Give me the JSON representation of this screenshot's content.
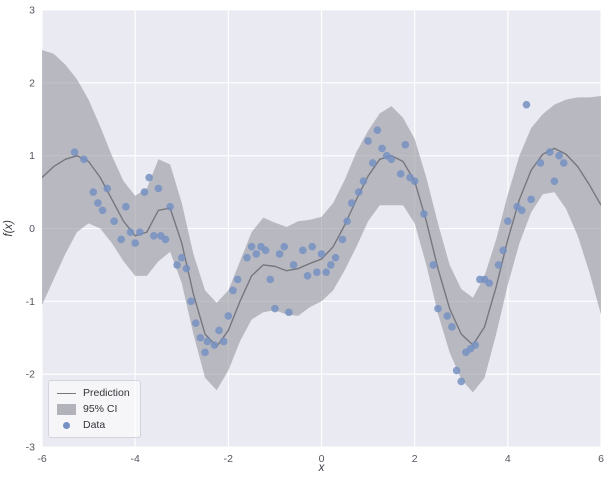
{
  "colors": {
    "axes_bg": "#eaeaf2",
    "grid": "#ffffff",
    "line": "#77777e",
    "band": "#9a9aa2",
    "dots": "#7590c2",
    "tick_text": "#555560"
  },
  "chart_data": {
    "type": "line",
    "title": "",
    "xlabel": "x",
    "ylabel": "f(x)",
    "xlim": [
      -6,
      6
    ],
    "ylim": [
      -3,
      3
    ],
    "xticks": [
      -6,
      -4,
      -2,
      0,
      2,
      4,
      6
    ],
    "yticks": [
      -3,
      -2,
      -1,
      0,
      1,
      2,
      3
    ],
    "grid": true,
    "legend_position": "lower left",
    "series": [
      {
        "name": "Prediction",
        "type": "line",
        "x": [
          -6.0,
          -5.75,
          -5.5,
          -5.25,
          -5.0,
          -4.75,
          -4.5,
          -4.25,
          -4.0,
          -3.75,
          -3.5,
          -3.25,
          -3.0,
          -2.75,
          -2.5,
          -2.25,
          -2.0,
          -1.75,
          -1.5,
          -1.25,
          -1.0,
          -0.75,
          -0.5,
          -0.25,
          0.0,
          0.25,
          0.5,
          0.75,
          1.0,
          1.25,
          1.5,
          1.75,
          2.0,
          2.25,
          2.5,
          2.75,
          3.0,
          3.25,
          3.5,
          3.75,
          4.0,
          4.25,
          4.5,
          4.75,
          5.0,
          5.25,
          5.5,
          5.75,
          6.0
        ],
        "y": [
          0.7,
          0.85,
          0.95,
          1.0,
          0.92,
          0.7,
          0.4,
          0.1,
          -0.1,
          -0.05,
          0.25,
          0.28,
          -0.2,
          -0.9,
          -1.45,
          -1.62,
          -1.4,
          -1.0,
          -0.65,
          -0.5,
          -0.52,
          -0.58,
          -0.55,
          -0.48,
          -0.42,
          -0.25,
          0.05,
          0.4,
          0.72,
          0.95,
          1.0,
          0.92,
          0.65,
          0.1,
          -0.55,
          -1.1,
          -1.45,
          -1.6,
          -1.35,
          -0.8,
          -0.15,
          0.4,
          0.8,
          1.02,
          1.1,
          1.02,
          0.85,
          0.6,
          0.32
        ]
      },
      {
        "name": "95% CI",
        "type": "band",
        "x": [
          -6.0,
          -5.75,
          -5.5,
          -5.25,
          -5.0,
          -4.75,
          -4.5,
          -4.25,
          -4.0,
          -3.75,
          -3.5,
          -3.25,
          -3.0,
          -2.75,
          -2.5,
          -2.25,
          -2.0,
          -1.75,
          -1.5,
          -1.25,
          -1.0,
          -0.75,
          -0.5,
          -0.25,
          0.0,
          0.25,
          0.5,
          0.75,
          1.0,
          1.25,
          1.5,
          1.75,
          2.0,
          2.25,
          2.5,
          2.75,
          3.0,
          3.25,
          3.5,
          3.75,
          4.0,
          4.25,
          4.5,
          4.75,
          5.0,
          5.25,
          5.5,
          5.75,
          6.0
        ],
        "upper": [
          2.45,
          2.4,
          2.25,
          2.05,
          1.77,
          1.4,
          1.0,
          0.65,
          0.45,
          0.55,
          0.95,
          0.88,
          0.35,
          -0.35,
          -0.85,
          -1.02,
          -0.85,
          -0.45,
          -0.05,
          0.15,
          0.08,
          0.02,
          0.1,
          0.12,
          0.16,
          0.35,
          0.67,
          1.05,
          1.34,
          1.58,
          1.68,
          1.52,
          1.23,
          0.7,
          0.07,
          -0.5,
          -0.83,
          -0.95,
          -0.65,
          -0.15,
          0.47,
          1.0,
          1.38,
          1.57,
          1.7,
          1.77,
          1.8,
          1.8,
          1.82
        ],
        "lower": [
          -1.05,
          -0.7,
          -0.35,
          -0.05,
          0.07,
          0.0,
          -0.2,
          -0.45,
          -0.65,
          -0.65,
          -0.45,
          -0.32,
          -0.75,
          -1.45,
          -2.05,
          -2.22,
          -1.95,
          -1.55,
          -1.25,
          -1.15,
          -1.12,
          -1.18,
          -1.2,
          -1.08,
          -1.0,
          -0.85,
          -0.57,
          -0.25,
          0.1,
          0.32,
          0.32,
          0.32,
          0.07,
          -0.5,
          -1.17,
          -1.7,
          -2.07,
          -2.25,
          -2.05,
          -1.45,
          -0.77,
          -0.2,
          0.22,
          0.47,
          0.5,
          0.27,
          -0.1,
          -0.6,
          -1.18
        ]
      },
      {
        "name": "Data",
        "type": "scatter",
        "x": [
          -5.3,
          -5.1,
          -4.9,
          -4.8,
          -4.7,
          -4.6,
          -4.45,
          -4.3,
          -4.2,
          -4.1,
          -4.0,
          -3.9,
          -3.8,
          -3.7,
          -3.6,
          -3.5,
          -3.45,
          -3.35,
          -3.25,
          -3.1,
          -3.0,
          -2.9,
          -2.8,
          -2.7,
          -2.6,
          -2.5,
          -2.45,
          -2.3,
          -2.2,
          -2.1,
          -2.0,
          -1.9,
          -1.8,
          -1.6,
          -1.5,
          -1.4,
          -1.3,
          -1.2,
          -1.1,
          -1.0,
          -0.9,
          -0.8,
          -0.7,
          -0.6,
          -0.4,
          -0.3,
          -0.2,
          -0.1,
          0.0,
          0.1,
          0.2,
          0.3,
          0.45,
          0.55,
          0.65,
          0.8,
          0.9,
          1.0,
          1.1,
          1.2,
          1.3,
          1.4,
          1.5,
          1.7,
          1.8,
          1.9,
          2.0,
          2.2,
          2.4,
          2.5,
          2.7,
          2.8,
          2.9,
          3.0,
          3.1,
          3.2,
          3.3,
          3.4,
          3.5,
          3.6,
          3.8,
          3.9,
          4.0,
          4.2,
          4.3,
          4.4,
          4.5,
          4.7,
          4.9,
          5.0,
          5.1,
          5.2
        ],
        "y": [
          1.05,
          0.95,
          0.5,
          0.35,
          0.25,
          0.55,
          0.1,
          -0.15,
          0.3,
          -0.05,
          -0.2,
          -0.05,
          0.5,
          0.7,
          -0.1,
          0.55,
          -0.1,
          -0.15,
          0.3,
          -0.5,
          -0.4,
          -0.55,
          -1.0,
          -1.3,
          -1.5,
          -1.7,
          -1.55,
          -1.6,
          -1.4,
          -1.55,
          -1.2,
          -0.85,
          -0.7,
          -0.4,
          -0.25,
          -0.35,
          -0.25,
          -0.3,
          -0.7,
          -1.1,
          -0.35,
          -0.25,
          -1.15,
          -0.5,
          -0.3,
          -0.65,
          -0.25,
          -0.6,
          -0.35,
          -0.6,
          -0.5,
          -0.4,
          -0.15,
          0.1,
          0.35,
          0.5,
          0.65,
          1.2,
          0.9,
          1.35,
          1.1,
          1.0,
          0.95,
          0.75,
          1.15,
          0.7,
          0.65,
          0.2,
          -0.5,
          -1.1,
          -1.2,
          -1.35,
          -1.95,
          -2.1,
          -1.7,
          -1.65,
          -1.6,
          -0.7,
          -0.7,
          -0.75,
          -0.5,
          -0.3,
          0.1,
          0.3,
          0.25,
          1.7,
          0.4,
          0.9,
          1.05,
          0.65,
          1.0,
          0.9
        ]
      }
    ]
  }
}
